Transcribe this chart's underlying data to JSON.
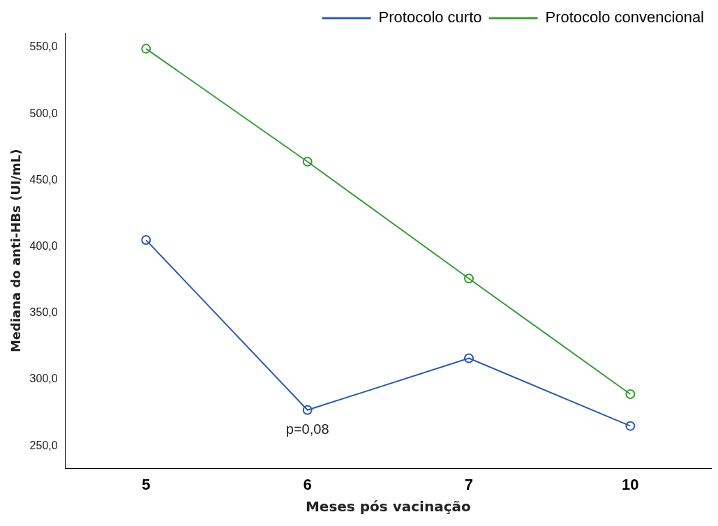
{
  "chart_data": {
    "type": "line",
    "xlabel": "Meses pós vacinação",
    "ylabel": "Mediana do anti-HBs (UI/mL)",
    "categories": [
      "5",
      "6",
      "7",
      "10"
    ],
    "series": [
      {
        "name": "Protocolo curto",
        "color": "#2d5ba7",
        "values": [
          405,
          277,
          316,
          265
        ]
      },
      {
        "name": "Protocolo convencional",
        "color": "#3a9a3a",
        "values": [
          549,
          464,
          376,
          289
        ]
      }
    ],
    "ylim": [
      233,
      561
    ],
    "yticks": [
      {
        "value": 250,
        "label": "250,0"
      },
      {
        "value": 300,
        "label": "300,0"
      },
      {
        "value": 350,
        "label": "350,0"
      },
      {
        "value": 400,
        "label": "400,0"
      },
      {
        "value": 450,
        "label": "450,0"
      },
      {
        "value": 500,
        "label": "500,0"
      },
      {
        "value": 550,
        "label": "550,0"
      }
    ],
    "annotations": [
      "p=0,08"
    ],
    "grid": false,
    "legend": "top right",
    "marker": "circle",
    "line_style": "solid"
  }
}
